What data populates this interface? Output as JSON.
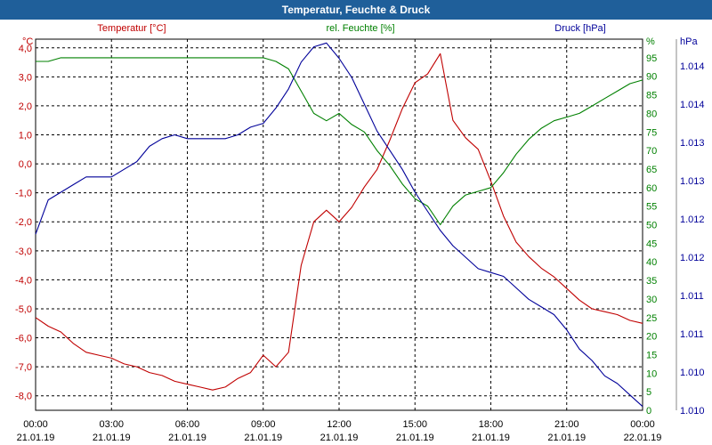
{
  "window": {
    "title": "Temperatur, Feuchte & Druck"
  },
  "colors": {
    "temperature": "#c00000",
    "humidity": "#008000",
    "pressure": "#000099",
    "title_bg": "#1f5f9a",
    "grid": "#000000",
    "axis_text": "#000000"
  },
  "chart_data": {
    "type": "line",
    "title": "Temperatur, Feuchte & Druck",
    "x": {
      "tick_times": [
        "00:00",
        "03:00",
        "06:00",
        "09:00",
        "12:00",
        "15:00",
        "18:00",
        "21:00",
        "00:00"
      ],
      "tick_dates": [
        "21.01.19",
        "21.01.19",
        "21.01.19",
        "21.01.19",
        "21.01.19",
        "21.01.19",
        "21.01.19",
        "21.01.19",
        "22.01.19"
      ],
      "range_hours": [
        0,
        24
      ]
    },
    "axes": {
      "temperature": {
        "label": "Temperatur [°C]",
        "unit": "°C",
        "range": [
          -8.5,
          4.3
        ],
        "ticks": [
          "4,0",
          "3,0",
          "2,0",
          "1,0",
          "0,0",
          "-1,0",
          "-2,0",
          "-3,0",
          "-4,0",
          "-5,0",
          "-6,0",
          "-7,0",
          "-8,0"
        ],
        "tick_values": [
          4,
          3,
          2,
          1,
          0,
          -1,
          -2,
          -3,
          -4,
          -5,
          -6,
          -7,
          -8
        ]
      },
      "humidity": {
        "label": "rel. Feuchte [%]",
        "unit": "%",
        "range": [
          0,
          100
        ],
        "ticks": [
          "95",
          "90",
          "85",
          "80",
          "75",
          "70",
          "65",
          "60",
          "55",
          "50",
          "45",
          "40",
          "35",
          "30",
          "25",
          "20",
          "15",
          "10",
          "5",
          "0"
        ],
        "tick_values": [
          95,
          90,
          85,
          80,
          75,
          70,
          65,
          60,
          55,
          50,
          45,
          40,
          35,
          30,
          25,
          20,
          15,
          10,
          5,
          0
        ]
      },
      "pressure": {
        "label": "Druck [hPa]",
        "unit": "hPa",
        "range": [
          1009.75,
          1014.6
        ],
        "ticks": [
          "1.014",
          "1.014",
          "1.013",
          "1.013",
          "1.012",
          "1.012",
          "1.011",
          "1.011",
          "1.010",
          "1.010"
        ],
        "tick_values": [
          1014.25,
          1013.75,
          1013.25,
          1012.75,
          1012.25,
          1011.75,
          1011.25,
          1010.75,
          1010.25,
          1009.75
        ]
      }
    },
    "series": [
      {
        "name": "Temperatur [°C]",
        "axis": "temperature",
        "x": [
          0,
          0.5,
          1,
          1.5,
          2,
          2.5,
          3,
          3.5,
          4,
          4.5,
          5,
          5.5,
          6,
          6.5,
          7,
          7.5,
          8,
          8.5,
          9,
          9.5,
          10,
          10.5,
          11,
          11.5,
          12,
          12.5,
          13,
          13.5,
          14,
          14.5,
          15,
          15.5,
          16,
          16.5,
          17,
          17.5,
          18,
          18.5,
          19,
          19.5,
          20,
          20.5,
          21,
          21.5,
          22,
          22.5,
          23,
          23.5,
          24
        ],
        "values": [
          -5.3,
          -5.6,
          -5.8,
          -6.2,
          -6.5,
          -6.6,
          -6.7,
          -6.9,
          -7.0,
          -7.2,
          -7.3,
          -7.5,
          -7.6,
          -7.7,
          -7.8,
          -7.7,
          -7.4,
          -7.2,
          -6.6,
          -7.0,
          -6.5,
          -3.5,
          -2.0,
          -1.6,
          -2.0,
          -1.5,
          -0.8,
          -0.2,
          0.8,
          1.9,
          2.8,
          3.1,
          3.8,
          1.5,
          0.9,
          0.5,
          -0.6,
          -1.8,
          -2.7,
          -3.2,
          -3.6,
          -3.9,
          -4.3,
          -4.7,
          -5.0,
          -5.1,
          -5.2,
          -5.4,
          -5.5
        ]
      },
      {
        "name": "rel. Feuchte [%]",
        "axis": "humidity",
        "x": [
          0,
          0.5,
          1,
          1.5,
          2,
          2.5,
          3,
          3.5,
          4,
          4.5,
          5,
          5.5,
          6,
          6.5,
          7,
          7.5,
          8,
          8.5,
          9,
          9.5,
          10,
          10.5,
          11,
          11.5,
          12,
          12.5,
          13,
          13.5,
          14,
          14.5,
          15,
          15.5,
          16,
          16.5,
          17,
          17.5,
          18,
          18.5,
          19,
          19.5,
          20,
          20.5,
          21,
          21.5,
          22,
          22.5,
          23,
          23.5,
          24
        ],
        "values": [
          94,
          94,
          95,
          95,
          95,
          95,
          95,
          95,
          95,
          95,
          95,
          95,
          95,
          95,
          95,
          95,
          95,
          95,
          95,
          94,
          92,
          86,
          80,
          78,
          80,
          77,
          75,
          70,
          66,
          61,
          57,
          55,
          50,
          55,
          58,
          59,
          60,
          64,
          69,
          73,
          76,
          78,
          79,
          80,
          82,
          84,
          86,
          88,
          89
        ]
      },
      {
        "name": "Druck [hPa]",
        "axis": "pressure",
        "x": [
          0,
          0.5,
          1,
          1.5,
          2,
          2.5,
          3,
          3.5,
          4,
          4.5,
          5,
          5.5,
          6,
          6.5,
          7,
          7.5,
          8,
          8.5,
          9,
          9.5,
          10,
          10.5,
          11,
          11.5,
          12,
          12.5,
          13,
          13.5,
          14,
          14.5,
          15,
          15.5,
          16,
          16.5,
          17,
          17.5,
          18,
          18.5,
          19,
          19.5,
          20,
          20.5,
          21,
          21.5,
          22,
          22.5,
          23,
          23.5,
          24
        ],
        "values": [
          1012.05,
          1012.5,
          1012.6,
          1012.7,
          1012.8,
          1012.8,
          1012.8,
          1012.9,
          1013.0,
          1013.2,
          1013.3,
          1013.35,
          1013.3,
          1013.3,
          1013.3,
          1013.3,
          1013.35,
          1013.45,
          1013.5,
          1013.7,
          1013.95,
          1014.3,
          1014.5,
          1014.55,
          1014.35,
          1014.1,
          1013.75,
          1013.4,
          1013.15,
          1012.9,
          1012.6,
          1012.35,
          1012.1,
          1011.9,
          1011.75,
          1011.6,
          1011.55,
          1011.5,
          1011.35,
          1011.2,
          1011.1,
          1011.0,
          1010.8,
          1010.55,
          1010.4,
          1010.2,
          1010.1,
          1009.95,
          1009.8
        ]
      }
    ]
  }
}
